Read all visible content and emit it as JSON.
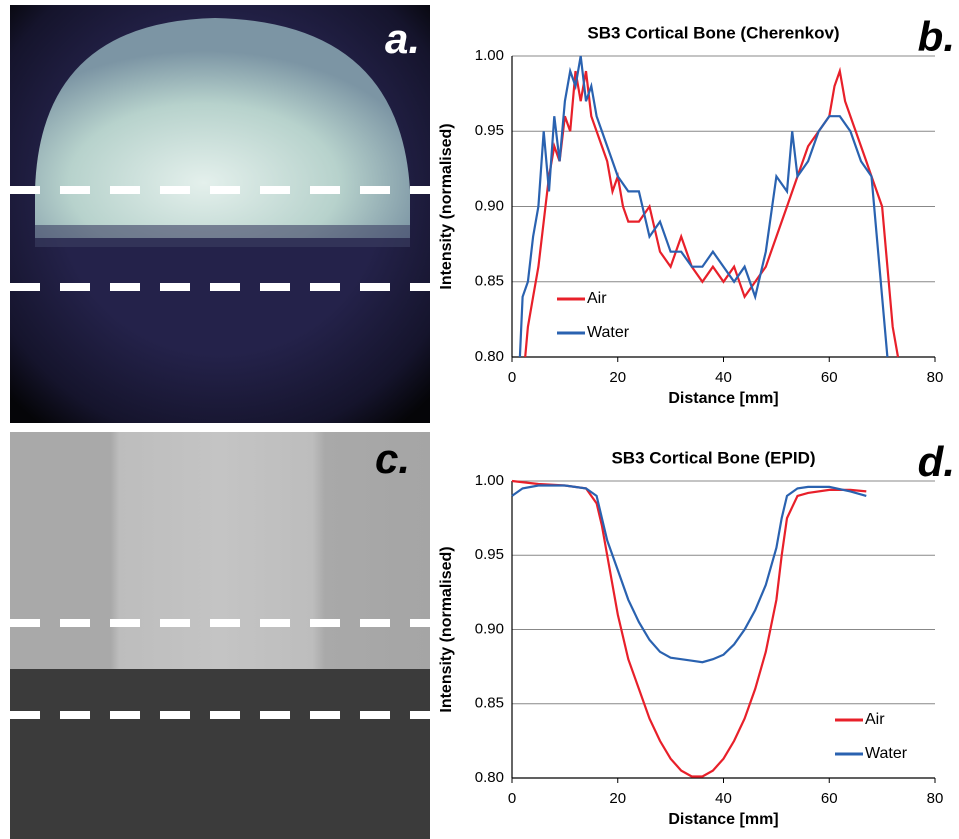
{
  "image_labels": [
    "a.",
    "c."
  ],
  "chart_data": [
    {
      "type": "line",
      "title": "SB3 Cortical Bone (Cherenkov)",
      "panel_label": "b.",
      "xlabel": "Distance [mm]",
      "ylabel": "Intensity (normalised)",
      "xlim": [
        0,
        80
      ],
      "ylim": [
        0.8,
        1.0
      ],
      "xticks": [
        0,
        20,
        40,
        60,
        80
      ],
      "yticks": [
        {
          "value": 0.8,
          "label": "0.80"
        },
        0.85,
        {
          "value": 0.9,
          "label": "0.90"
        },
        0.95,
        {
          "value": 1.0,
          "label": "1.00"
        }
      ],
      "grid": true,
      "legend": "lower left",
      "series": [
        {
          "name": "Air",
          "color": "#e8202a",
          "x": [
            2.5,
            3,
            4,
            5,
            6,
            7,
            8,
            9,
            10,
            11,
            12,
            13,
            14,
            15,
            16,
            17,
            18,
            19,
            20,
            21,
            22,
            24,
            26,
            28,
            30,
            32,
            34,
            36,
            38,
            40,
            42,
            44,
            46,
            48,
            50,
            52,
            54,
            56,
            58,
            60,
            61,
            62,
            63,
            64,
            65,
            66,
            67,
            68,
            69,
            70,
            71,
            72,
            73
          ],
          "values": [
            0.8,
            0.82,
            0.84,
            0.86,
            0.89,
            0.92,
            0.94,
            0.93,
            0.96,
            0.95,
            0.99,
            0.97,
            0.99,
            0.96,
            0.95,
            0.94,
            0.93,
            0.91,
            0.92,
            0.9,
            0.89,
            0.89,
            0.9,
            0.87,
            0.86,
            0.88,
            0.86,
            0.85,
            0.86,
            0.85,
            0.86,
            0.84,
            0.85,
            0.86,
            0.88,
            0.9,
            0.92,
            0.94,
            0.95,
            0.96,
            0.98,
            0.99,
            0.97,
            0.96,
            0.95,
            0.94,
            0.93,
            0.92,
            0.91,
            0.9,
            0.86,
            0.82,
            0.8
          ]
        },
        {
          "name": "Water",
          "color": "#2a62b0",
          "x": [
            1.5,
            2,
            3,
            4,
            5,
            6,
            7,
            8,
            9,
            10,
            11,
            12,
            13,
            14,
            15,
            16,
            17,
            18,
            19,
            20,
            22,
            24,
            26,
            28,
            30,
            32,
            34,
            36,
            38,
            40,
            42,
            44,
            46,
            48,
            50,
            52,
            53,
            54,
            56,
            58,
            60,
            62,
            64,
            66,
            68,
            70,
            71
          ],
          "values": [
            0.8,
            0.84,
            0.85,
            0.88,
            0.9,
            0.95,
            0.91,
            0.96,
            0.93,
            0.97,
            0.99,
            0.98,
            1.0,
            0.97,
            0.98,
            0.96,
            0.95,
            0.94,
            0.93,
            0.92,
            0.91,
            0.91,
            0.88,
            0.89,
            0.87,
            0.87,
            0.86,
            0.86,
            0.87,
            0.86,
            0.85,
            0.86,
            0.84,
            0.87,
            0.92,
            0.91,
            0.95,
            0.92,
            0.93,
            0.95,
            0.96,
            0.96,
            0.95,
            0.93,
            0.92,
            0.84,
            0.8
          ]
        }
      ]
    },
    {
      "type": "line",
      "title": "SB3 Cortical Bone (EPID)",
      "panel_label": "d.",
      "xlabel": "Distance [mm]",
      "ylabel": "Intensity (normalised)",
      "xlim": [
        0,
        80
      ],
      "ylim": [
        0.8,
        1.0
      ],
      "xticks": [
        0,
        20,
        40,
        60,
        80
      ],
      "yticks": [
        {
          "value": 0.8,
          "label": "0.80"
        },
        0.85,
        {
          "value": 0.9,
          "label": "0.90"
        },
        0.95,
        {
          "value": 1.0,
          "label": "1.00"
        }
      ],
      "grid": true,
      "legend": "lower right",
      "series": [
        {
          "name": "Air",
          "color": "#e8202a",
          "x": [
            0,
            5,
            10,
            14,
            16,
            17,
            18,
            19,
            20,
            22,
            24,
            26,
            28,
            30,
            32,
            34,
            36,
            38,
            40,
            42,
            44,
            46,
            48,
            50,
            51,
            52,
            54,
            56,
            60,
            64,
            67
          ],
          "values": [
            1.0,
            0.998,
            0.997,
            0.995,
            0.985,
            0.97,
            0.95,
            0.93,
            0.91,
            0.88,
            0.86,
            0.84,
            0.825,
            0.813,
            0.805,
            0.801,
            0.801,
            0.805,
            0.813,
            0.825,
            0.84,
            0.86,
            0.885,
            0.92,
            0.95,
            0.975,
            0.99,
            0.992,
            0.994,
            0.994,
            0.993
          ]
        },
        {
          "name": "Water",
          "color": "#2a62b0",
          "x": [
            0,
            2,
            5,
            10,
            14,
            16,
            17,
            18,
            20,
            22,
            24,
            26,
            28,
            30,
            32,
            34,
            36,
            38,
            40,
            42,
            44,
            46,
            48,
            50,
            51,
            52,
            54,
            56,
            60,
            64,
            67
          ],
          "values": [
            0.99,
            0.995,
            0.997,
            0.997,
            0.995,
            0.99,
            0.975,
            0.96,
            0.94,
            0.92,
            0.905,
            0.893,
            0.885,
            0.881,
            0.88,
            0.879,
            0.878,
            0.88,
            0.883,
            0.89,
            0.9,
            0.913,
            0.93,
            0.955,
            0.975,
            0.99,
            0.995,
            0.996,
            0.996,
            0.993,
            0.99
          ]
        }
      ]
    }
  ]
}
